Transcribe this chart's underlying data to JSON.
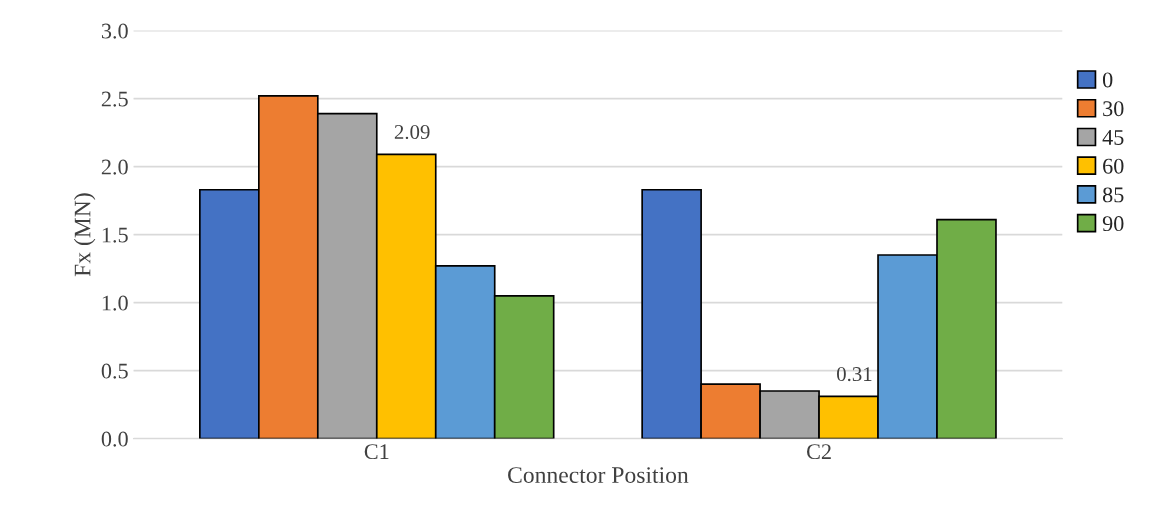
{
  "chart_data": {
    "type": "bar",
    "xlabel": "Connector Position",
    "ylabel": "Fx (MN)",
    "categories": [
      "C1",
      "C2"
    ],
    "series": [
      {
        "name": "0",
        "color": "#4472c4",
        "values": [
          1.83,
          1.83
        ]
      },
      {
        "name": "30",
        "color": "#ed7d31",
        "values": [
          2.52,
          0.4
        ]
      },
      {
        "name": "45",
        "color": "#a5a5a5",
        "values": [
          2.39,
          0.35
        ]
      },
      {
        "name": "60",
        "color": "#ffc000",
        "values": [
          2.09,
          0.31
        ],
        "value_labels": [
          "2.09",
          "0.31"
        ]
      },
      {
        "name": "85",
        "color": "#5b9bd5",
        "values": [
          1.27,
          1.35
        ]
      },
      {
        "name": "90",
        "color": "#70ad47",
        "values": [
          1.05,
          1.61
        ]
      }
    ],
    "ylim": [
      0,
      3.0
    ],
    "yticks": [
      "0.0",
      "0.5",
      "1.0",
      "1.5",
      "2.0",
      "2.5",
      "3.0"
    ],
    "grid": "y",
    "legend": "right"
  }
}
